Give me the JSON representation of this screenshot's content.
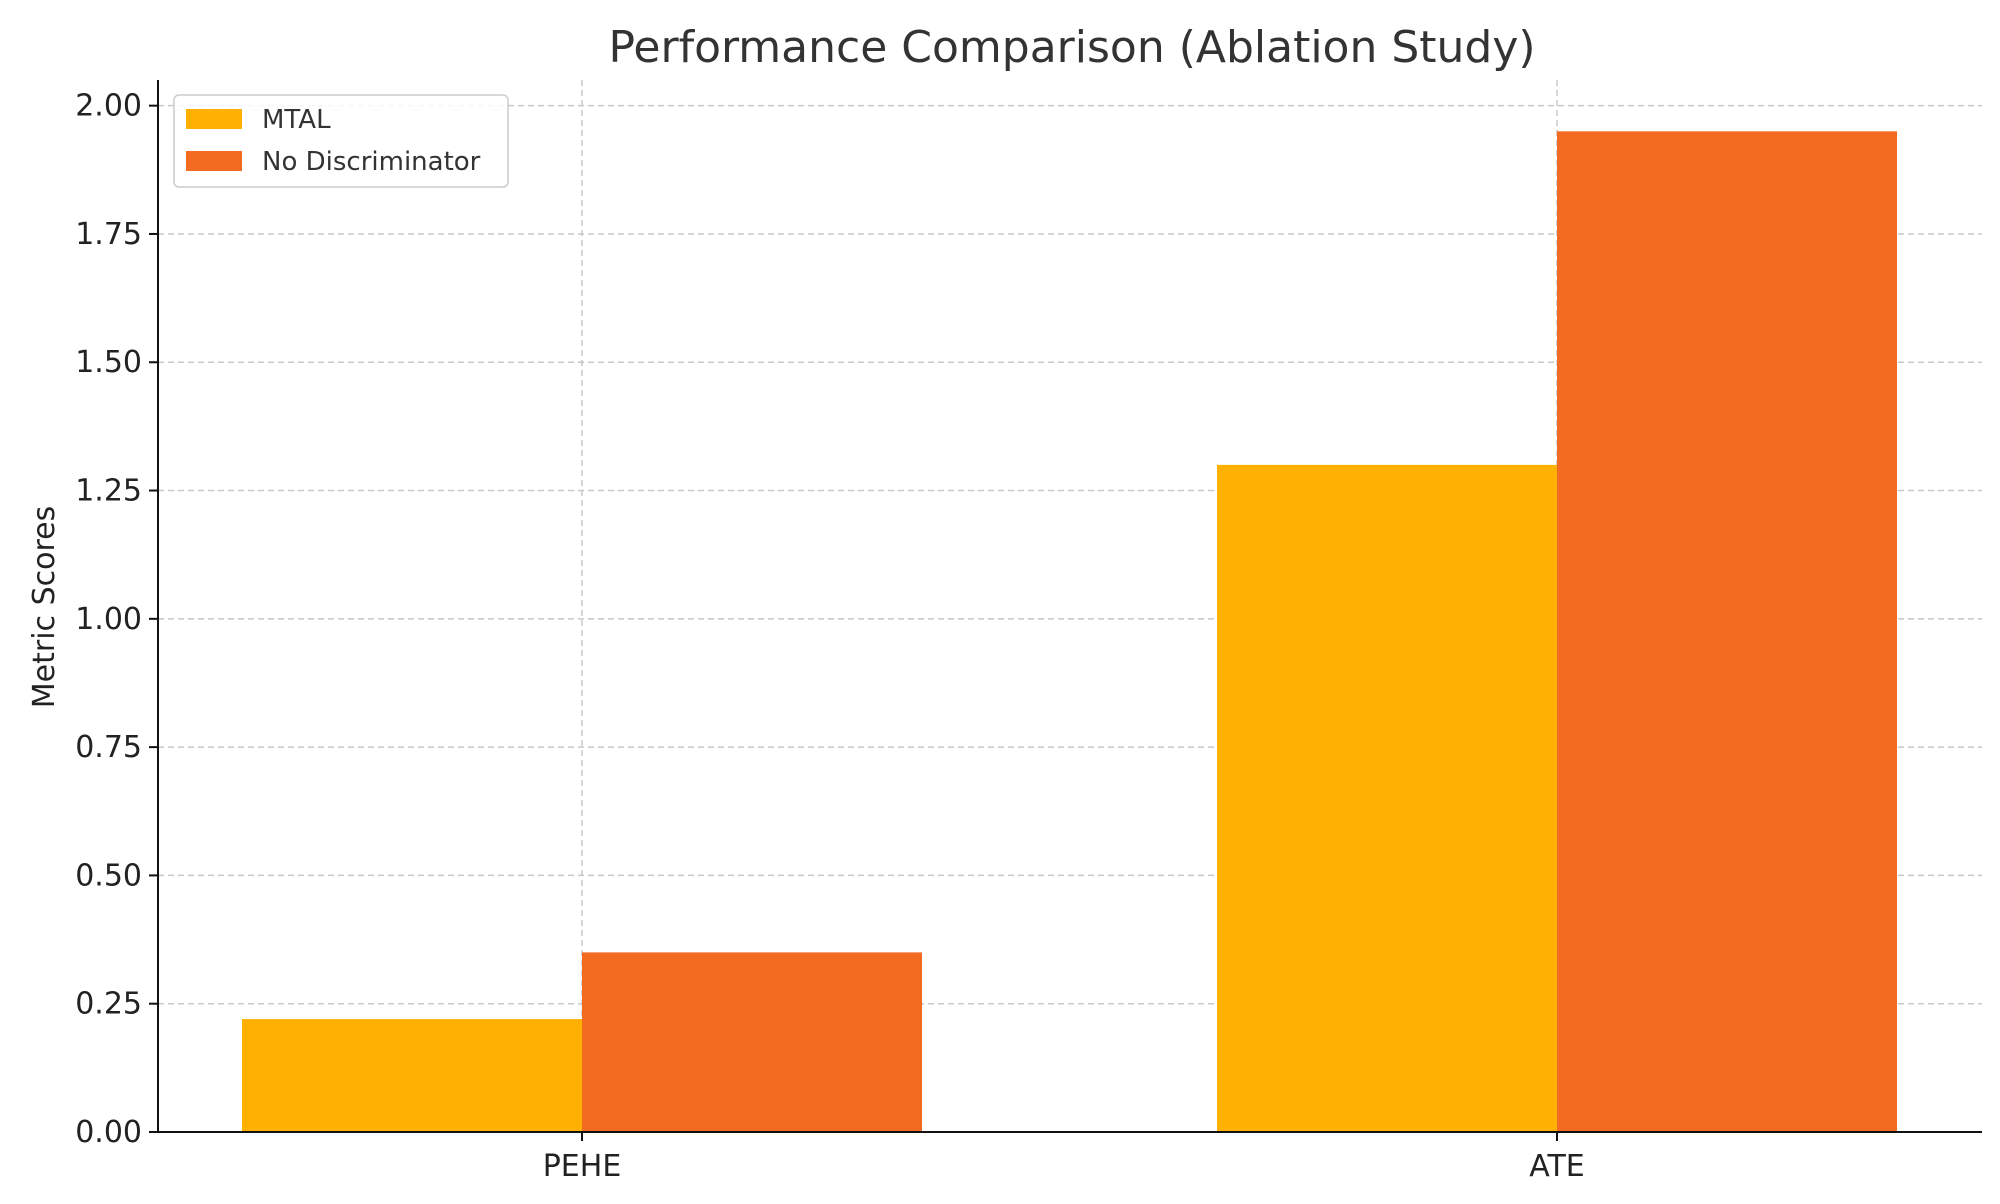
{
  "chart_data": {
    "type": "bar",
    "title": "Performance Comparison (Ablation Study)",
    "xlabel": "",
    "ylabel": "Metric Scores",
    "categories": [
      "PEHE",
      "ATE"
    ],
    "series": [
      {
        "name": "MTAL",
        "values": [
          0.22,
          1.3
        ],
        "color": "#FFB000"
      },
      {
        "name": "No Discriminator",
        "values": [
          0.35,
          1.95
        ],
        "color": "#F26B21"
      }
    ],
    "ylim": [
      0,
      2.05
    ],
    "yticks": [
      0.0,
      0.25,
      0.5,
      0.75,
      1.0,
      1.25,
      1.5,
      1.75,
      2.0
    ],
    "ytick_labels": [
      "0.00",
      "0.25",
      "0.50",
      "0.75",
      "1.00",
      "1.25",
      "1.50",
      "1.75",
      "2.00"
    ],
    "grid": true,
    "legend_position": "top-left"
  }
}
